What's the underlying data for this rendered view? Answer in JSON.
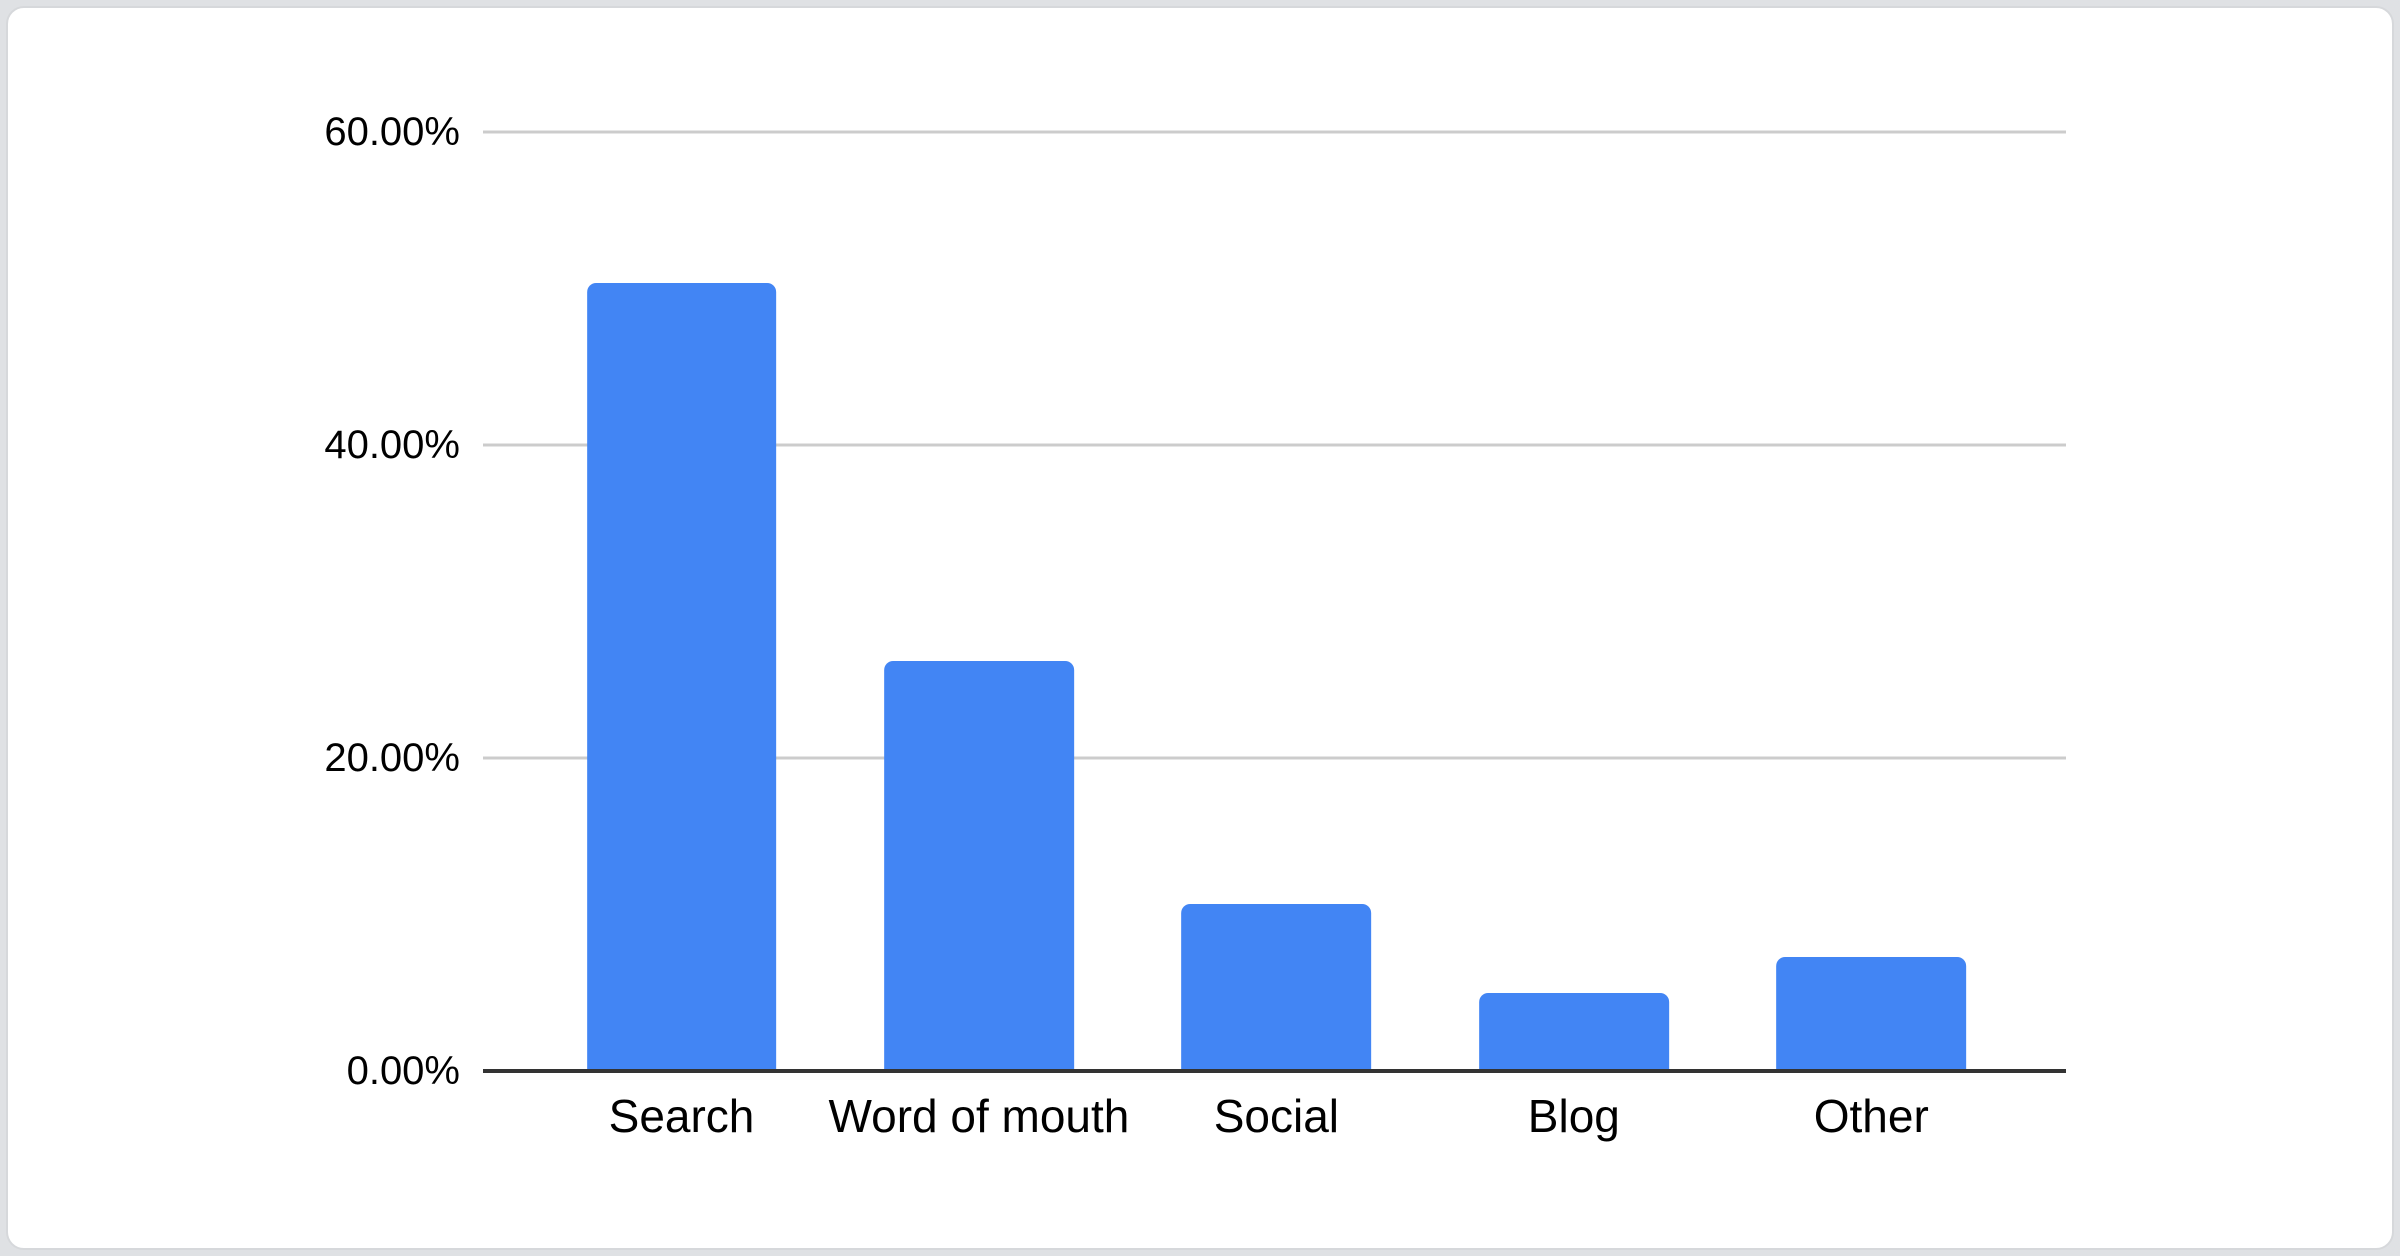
{
  "theme": {
    "page_background": "#dfe1e4",
    "card_background": "#ffffff",
    "card_border": "#d6d8db"
  },
  "chart_data": {
    "type": "bar",
    "title": "",
    "xlabel": "",
    "ylabel": "",
    "categories": [
      "Search",
      "Word of mouth",
      "Social",
      "Blog",
      "Other"
    ],
    "values": [
      50.3,
      26.2,
      10.7,
      5.0,
      7.3
    ],
    "value_unit": "%",
    "ylim": [
      0,
      60
    ],
    "yticks": [
      {
        "value": 0,
        "label": "0.00%"
      },
      {
        "value": 20,
        "label": "20.00%"
      },
      {
        "value": 40,
        "label": "40.00%"
      },
      {
        "value": 60,
        "label": "60.00%"
      }
    ],
    "grid": true,
    "legend": false,
    "bar_color": "#4285f4",
    "gridline_color": "#cccccc",
    "axis_line_color": "#333333",
    "tick_label_color": "#000000"
  }
}
